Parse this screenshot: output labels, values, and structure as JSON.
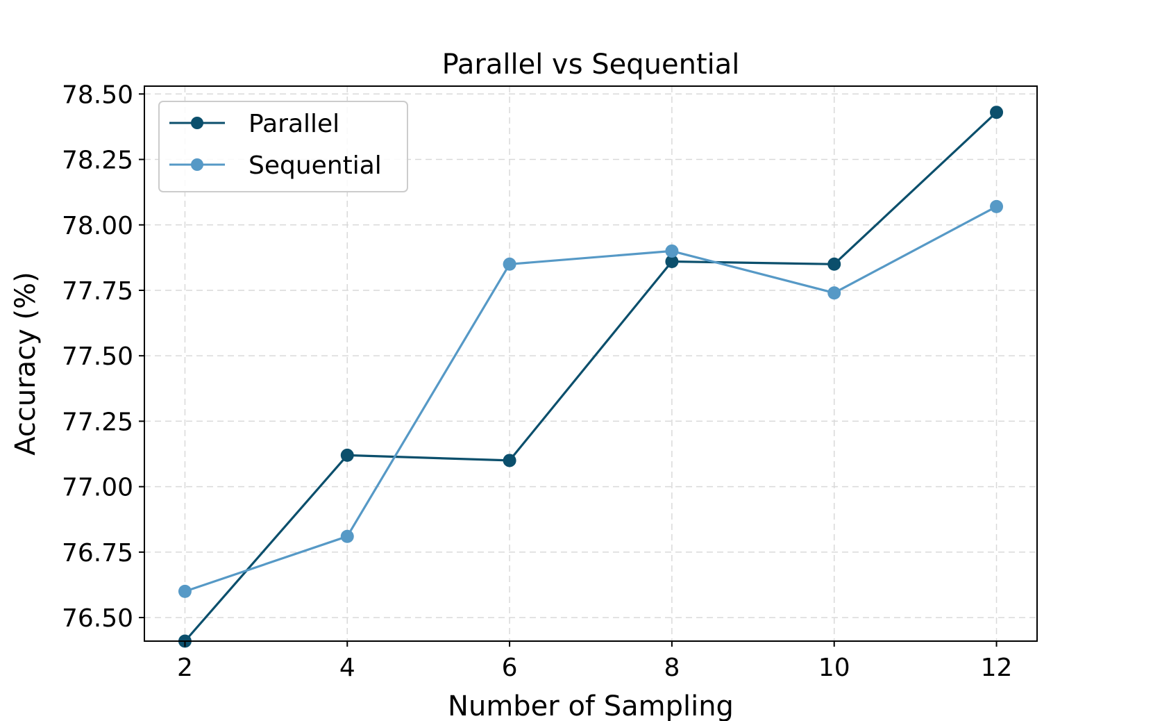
{
  "chart_data": {
    "type": "line",
    "title": "Parallel vs Sequential",
    "xlabel": "Number of Sampling",
    "ylabel": "Accuracy (%)",
    "x": [
      2,
      4,
      6,
      8,
      10,
      12
    ],
    "xlim": [
      1.5,
      12.5
    ],
    "ylim": [
      76.41,
      78.53
    ],
    "xticks": [
      2,
      4,
      6,
      8,
      10,
      12
    ],
    "yticks": [
      76.5,
      76.75,
      77.0,
      77.25,
      77.5,
      77.75,
      78.0,
      78.25,
      78.5
    ],
    "ytick_labels": [
      "76.50",
      "76.75",
      "77.00",
      "77.25",
      "77.50",
      "77.75",
      "78.00",
      "78.25",
      "78.50"
    ],
    "grid": true,
    "legend_position": "top-left",
    "series": [
      {
        "name": "Parallel",
        "color": "#0b4f6c",
        "values": [
          76.41,
          77.12,
          77.1,
          77.86,
          77.85,
          78.43
        ]
      },
      {
        "name": "Sequential",
        "color": "#5699c6",
        "values": [
          76.6,
          76.81,
          77.85,
          77.9,
          77.74,
          78.07
        ]
      }
    ]
  }
}
